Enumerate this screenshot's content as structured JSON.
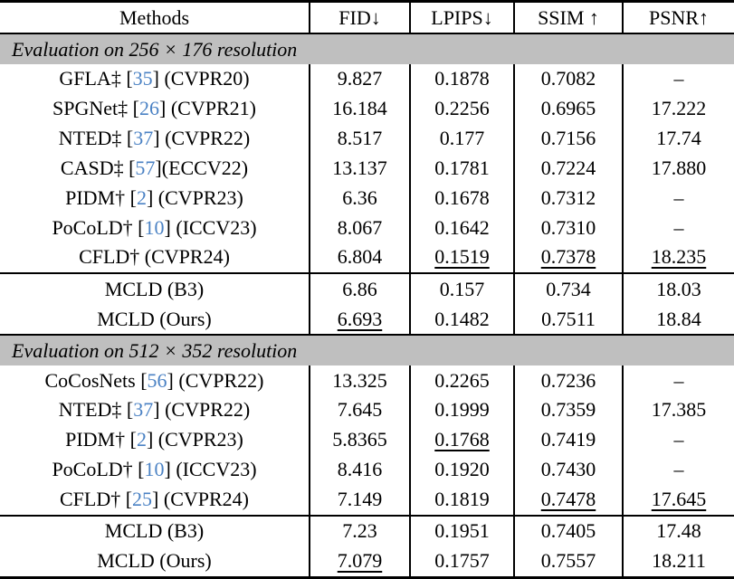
{
  "table": {
    "columns": [
      "Methods",
      "FID↓",
      "LPIPS↓",
      "SSIM ↑",
      "PSNR↑"
    ],
    "citation_color": "#4b82c4",
    "section_bg": "#bfbfbf",
    "rows": [
      {
        "type": "section",
        "label": "Evaluation on 256 × 176 resolution"
      },
      {
        "type": "data",
        "method": {
          "pre": "GFLA‡ [",
          "cite": "35",
          "post": "] (CVPR20)"
        },
        "values": [
          {
            "t": "9.827"
          },
          {
            "t": "0.1878"
          },
          {
            "t": "0.7082"
          },
          {
            "t": "–"
          }
        ]
      },
      {
        "type": "data",
        "method": {
          "pre": "SPGNet‡ [",
          "cite": "26",
          "post": "] (CVPR21)"
        },
        "values": [
          {
            "t": "16.184"
          },
          {
            "t": "0.2256"
          },
          {
            "t": "0.6965"
          },
          {
            "t": "17.222"
          }
        ]
      },
      {
        "type": "data",
        "method": {
          "pre": "NTED‡ [",
          "cite": "37",
          "post": "] (CVPR22)"
        },
        "values": [
          {
            "t": "8.517"
          },
          {
            "t": "0.177"
          },
          {
            "t": "0.7156"
          },
          {
            "t": "17.74"
          }
        ]
      },
      {
        "type": "data",
        "method": {
          "pre": "CASD‡ [",
          "cite": "57",
          "post": "](ECCV22)"
        },
        "values": [
          {
            "t": "13.137"
          },
          {
            "t": "0.1781"
          },
          {
            "t": "0.7224"
          },
          {
            "t": "17.880"
          }
        ]
      },
      {
        "type": "data",
        "method": {
          "pre": "PIDM† [",
          "cite": "2",
          "post": "] (CVPR23)"
        },
        "values": [
          {
            "t": "6.36",
            "bold": true
          },
          {
            "t": "0.1678"
          },
          {
            "t": "0.7312"
          },
          {
            "t": "–"
          }
        ]
      },
      {
        "type": "data",
        "method": {
          "pre": "PoCoLD† [",
          "cite": "10",
          "post": "] (ICCV23)"
        },
        "values": [
          {
            "t": "8.067"
          },
          {
            "t": "0.1642"
          },
          {
            "t": "0.7310"
          },
          {
            "t": "–"
          }
        ]
      },
      {
        "type": "data",
        "method": {
          "pre": "CFLD† (CVPR24)",
          "cite": null,
          "post": ""
        },
        "values": [
          {
            "t": "6.804"
          },
          {
            "t": "0.1519",
            "underline": true
          },
          {
            "t": "0.7378",
            "underline": true
          },
          {
            "t": "18.235",
            "underline": true
          }
        ]
      },
      {
        "type": "data",
        "midrule": true,
        "method": {
          "pre": "MCLD (B3)",
          "cite": null,
          "post": ""
        },
        "values": [
          {
            "t": "6.86"
          },
          {
            "t": "0.157"
          },
          {
            "t": "0.734"
          },
          {
            "t": "18.03"
          }
        ]
      },
      {
        "type": "data",
        "method": {
          "pre": "MCLD (Ours)",
          "cite": null,
          "post": ""
        },
        "values": [
          {
            "t": "6.693",
            "underline": true
          },
          {
            "t": "0.1482",
            "bold": true
          },
          {
            "t": "0.7511",
            "bold": true
          },
          {
            "t": "18.84",
            "bold": true
          }
        ]
      },
      {
        "type": "section",
        "label": "Evaluation on 512 × 352 resolution"
      },
      {
        "type": "data",
        "method": {
          "pre": "CoCosNets [",
          "cite": "56",
          "post": "] (CVPR22)"
        },
        "values": [
          {
            "t": "13.325"
          },
          {
            "t": "0.2265"
          },
          {
            "t": "0.7236"
          },
          {
            "t": "–"
          }
        ]
      },
      {
        "type": "data",
        "method": {
          "pre": "NTED‡ [",
          "cite": "37",
          "post": "] (CVPR22)"
        },
        "values": [
          {
            "t": "7.645"
          },
          {
            "t": "0.1999"
          },
          {
            "t": "0.7359"
          },
          {
            "t": "17.385"
          }
        ]
      },
      {
        "type": "data",
        "method": {
          "pre": "PIDM† [",
          "cite": "2",
          "post": "] (CVPR23)"
        },
        "values": [
          {
            "t": "5.8365",
            "bold": true
          },
          {
            "t": "0.1768",
            "underline": true
          },
          {
            "t": "0.7419"
          },
          {
            "t": "–"
          }
        ]
      },
      {
        "type": "data",
        "method": {
          "pre": "PoCoLD† [",
          "cite": "10",
          "post": "] (ICCV23)"
        },
        "values": [
          {
            "t": "8.416"
          },
          {
            "t": "0.1920"
          },
          {
            "t": "0.7430"
          },
          {
            "t": "–"
          }
        ]
      },
      {
        "type": "data",
        "method": {
          "pre": "CFLD† [",
          "cite": "25",
          "post": "] (CVPR24)"
        },
        "values": [
          {
            "t": "7.149"
          },
          {
            "t": "0.1819"
          },
          {
            "t": "0.7478",
            "underline": true
          },
          {
            "t": "17.645",
            "underline": true
          }
        ]
      },
      {
        "type": "data",
        "midrule": true,
        "method": {
          "pre": "MCLD (B3)",
          "cite": null,
          "post": ""
        },
        "values": [
          {
            "t": "7.23"
          },
          {
            "t": "0.1951"
          },
          {
            "t": "0.7405"
          },
          {
            "t": "17.48"
          }
        ]
      },
      {
        "type": "data",
        "method": {
          "pre": "MCLD (Ours)",
          "cite": null,
          "post": ""
        },
        "values": [
          {
            "t": "7.079",
            "underline": true
          },
          {
            "t": "0.1757",
            "bold": true
          },
          {
            "t": "0.7557",
            "bold": true
          },
          {
            "t": "18.211",
            "bold": true
          }
        ]
      }
    ]
  }
}
